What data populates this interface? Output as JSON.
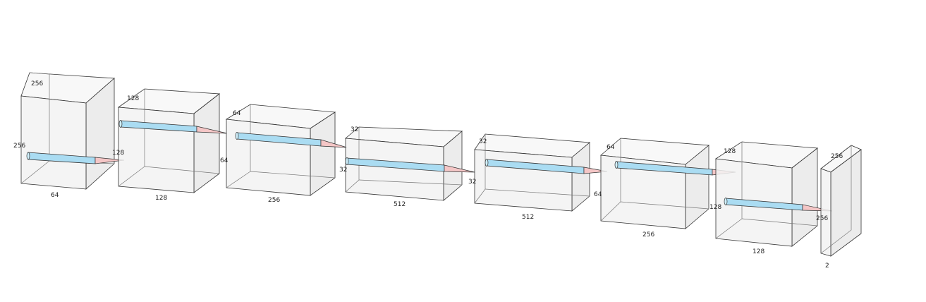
{
  "diagram": {
    "layers": [
      {
        "id": "layer-1",
        "height_label": "256",
        "depth_label": "256",
        "width_label": "64"
      },
      {
        "id": "layer-2",
        "height_label": "128",
        "depth_label": "128",
        "width_label": "128"
      },
      {
        "id": "layer-3",
        "height_label": "64",
        "depth_label": "64",
        "width_label": "256"
      },
      {
        "id": "layer-4",
        "height_label": "32",
        "depth_label": "32",
        "width_label": "512"
      },
      {
        "id": "layer-5",
        "height_label": "32",
        "depth_label": "32",
        "width_label": "512"
      },
      {
        "id": "layer-6",
        "height_label": "64",
        "depth_label": "64",
        "width_label": "256"
      },
      {
        "id": "layer-7",
        "height_label": "128",
        "depth_label": "128",
        "width_label": "128"
      },
      {
        "id": "layer-8",
        "height_label": "256",
        "depth_label": "256",
        "width_label": "2"
      }
    ],
    "colors": {
      "box_front": "#f2f2f2",
      "box_edge": "#333333",
      "pipe": "#aadcf2",
      "cone": "#f4c6c6"
    }
  }
}
